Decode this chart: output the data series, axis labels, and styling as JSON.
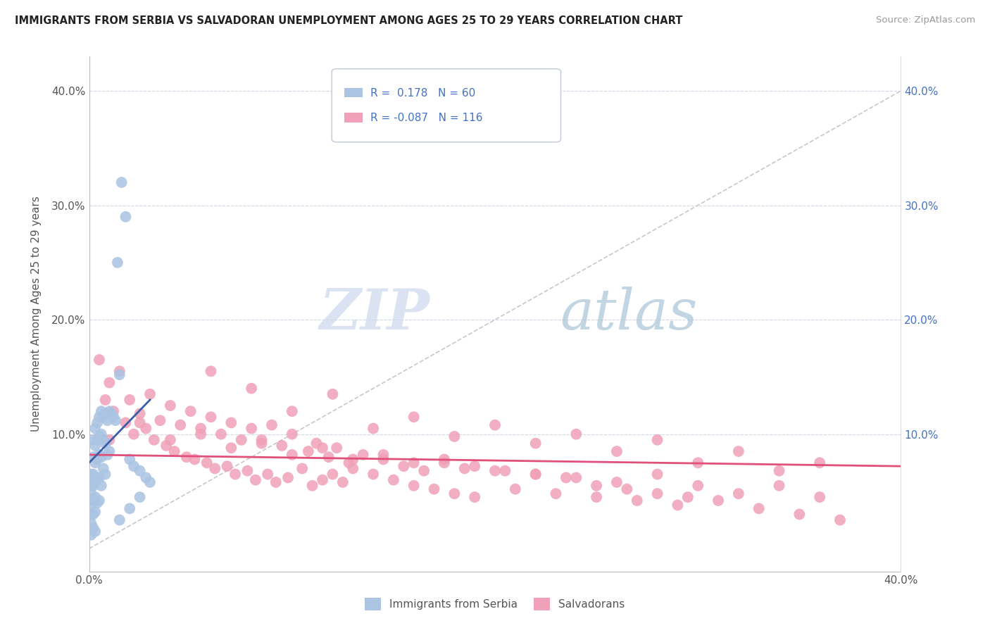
{
  "title": "IMMIGRANTS FROM SERBIA VS SALVADORAN UNEMPLOYMENT AMONG AGES 25 TO 29 YEARS CORRELATION CHART",
  "source": "Source: ZipAtlas.com",
  "ylabel": "Unemployment Among Ages 25 to 29 years",
  "xmin": 0.0,
  "xmax": 0.4,
  "ymin": -0.02,
  "ymax": 0.43,
  "blue_color": "#aac4e2",
  "blue_line_color": "#3a5fa8",
  "pink_color": "#f0a0b8",
  "pink_line_color": "#e0507a",
  "watermark_zip": "ZIP",
  "watermark_atlas": "atlas",
  "watermark_color_zip": "#c8d8ee",
  "watermark_color_atlas": "#a8c8d8",
  "serbia_x": [
    0.001,
    0.001,
    0.001,
    0.001,
    0.001,
    0.001,
    0.001,
    0.002,
    0.002,
    0.002,
    0.002,
    0.002,
    0.002,
    0.002,
    0.003,
    0.003,
    0.003,
    0.003,
    0.003,
    0.003,
    0.003,
    0.004,
    0.004,
    0.004,
    0.004,
    0.004,
    0.005,
    0.005,
    0.005,
    0.005,
    0.005,
    0.006,
    0.006,
    0.006,
    0.006,
    0.007,
    0.007,
    0.007,
    0.008,
    0.008,
    0.008,
    0.009,
    0.009,
    0.01,
    0.01,
    0.011,
    0.012,
    0.013,
    0.014,
    0.015,
    0.016,
    0.018,
    0.02,
    0.022,
    0.025,
    0.028,
    0.03,
    0.015,
    0.02,
    0.025
  ],
  "serbia_y": [
    0.065,
    0.055,
    0.048,
    0.038,
    0.03,
    0.022,
    0.012,
    0.095,
    0.08,
    0.065,
    0.055,
    0.042,
    0.03,
    0.018,
    0.105,
    0.09,
    0.075,
    0.06,
    0.045,
    0.032,
    0.015,
    0.11,
    0.095,
    0.078,
    0.06,
    0.04,
    0.115,
    0.098,
    0.082,
    0.062,
    0.042,
    0.12,
    0.1,
    0.08,
    0.055,
    0.115,
    0.095,
    0.07,
    0.118,
    0.092,
    0.065,
    0.112,
    0.082,
    0.12,
    0.085,
    0.118,
    0.115,
    0.112,
    0.25,
    0.152,
    0.32,
    0.29,
    0.078,
    0.072,
    0.068,
    0.062,
    0.058,
    0.025,
    0.035,
    0.045
  ],
  "salvador_x": [
    0.005,
    0.008,
    0.01,
    0.012,
    0.015,
    0.018,
    0.02,
    0.022,
    0.025,
    0.028,
    0.03,
    0.032,
    0.035,
    0.038,
    0.04,
    0.042,
    0.045,
    0.048,
    0.05,
    0.052,
    0.055,
    0.058,
    0.06,
    0.062,
    0.065,
    0.068,
    0.07,
    0.072,
    0.075,
    0.078,
    0.08,
    0.082,
    0.085,
    0.088,
    0.09,
    0.092,
    0.095,
    0.098,
    0.1,
    0.105,
    0.108,
    0.11,
    0.112,
    0.115,
    0.118,
    0.12,
    0.122,
    0.125,
    0.128,
    0.13,
    0.135,
    0.14,
    0.145,
    0.15,
    0.155,
    0.16,
    0.165,
    0.17,
    0.175,
    0.18,
    0.185,
    0.19,
    0.2,
    0.21,
    0.22,
    0.23,
    0.24,
    0.25,
    0.26,
    0.27,
    0.28,
    0.29,
    0.3,
    0.31,
    0.32,
    0.33,
    0.34,
    0.35,
    0.36,
    0.37,
    0.01,
    0.025,
    0.04,
    0.055,
    0.07,
    0.085,
    0.1,
    0.115,
    0.13,
    0.145,
    0.16,
    0.175,
    0.19,
    0.205,
    0.22,
    0.235,
    0.25,
    0.265,
    0.28,
    0.295,
    0.06,
    0.08,
    0.1,
    0.12,
    0.14,
    0.16,
    0.18,
    0.2,
    0.22,
    0.24,
    0.26,
    0.28,
    0.3,
    0.32,
    0.34,
    0.36
  ],
  "salvador_y": [
    0.165,
    0.13,
    0.145,
    0.12,
    0.155,
    0.11,
    0.13,
    0.1,
    0.118,
    0.105,
    0.135,
    0.095,
    0.112,
    0.09,
    0.125,
    0.085,
    0.108,
    0.08,
    0.12,
    0.078,
    0.105,
    0.075,
    0.115,
    0.07,
    0.1,
    0.072,
    0.11,
    0.065,
    0.095,
    0.068,
    0.105,
    0.06,
    0.095,
    0.065,
    0.108,
    0.058,
    0.09,
    0.062,
    0.1,
    0.07,
    0.085,
    0.055,
    0.092,
    0.06,
    0.08,
    0.065,
    0.088,
    0.058,
    0.075,
    0.07,
    0.082,
    0.065,
    0.078,
    0.06,
    0.072,
    0.055,
    0.068,
    0.052,
    0.075,
    0.048,
    0.07,
    0.045,
    0.068,
    0.052,
    0.065,
    0.048,
    0.062,
    0.045,
    0.058,
    0.042,
    0.065,
    0.038,
    0.055,
    0.042,
    0.048,
    0.035,
    0.055,
    0.03,
    0.045,
    0.025,
    0.095,
    0.11,
    0.095,
    0.1,
    0.088,
    0.092,
    0.082,
    0.088,
    0.078,
    0.082,
    0.075,
    0.078,
    0.072,
    0.068,
    0.065,
    0.062,
    0.055,
    0.052,
    0.048,
    0.045,
    0.155,
    0.14,
    0.12,
    0.135,
    0.105,
    0.115,
    0.098,
    0.108,
    0.092,
    0.1,
    0.085,
    0.095,
    0.075,
    0.085,
    0.068,
    0.075
  ]
}
